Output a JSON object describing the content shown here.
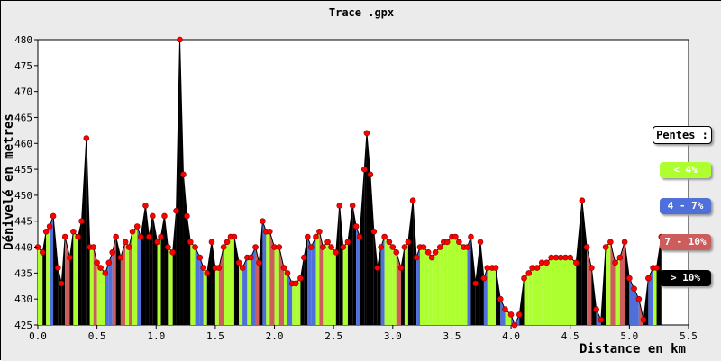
{
  "window": {
    "title": "Trace .gpx"
  },
  "legend": {
    "title": "Pentes :",
    "items": [
      {
        "label": "< 4%",
        "color": "#adff2f"
      },
      {
        "label": "4 - 7%",
        "color": "#4f6fd9"
      },
      {
        "label": "7 - 10%",
        "color": "#cd5c5c"
      },
      {
        "label": "> 10%",
        "color": "#000000"
      }
    ]
  },
  "chart_data": {
    "type": "area",
    "title": "Trace .gpx",
    "xlabel": "Distance en km",
    "ylabel": "Dénivelé en metres",
    "xlim": [
      0,
      5.5
    ],
    "ylim": [
      425,
      480
    ],
    "x_ticks": [
      "0.0",
      "0.5",
      "1.0",
      "1.5",
      "2.0",
      "2.5",
      "3.0",
      "3.5",
      "4.0",
      "4.5",
      "5.0",
      "5.5"
    ],
    "y_ticks": [
      "425",
      "430",
      "435",
      "440",
      "445",
      "450",
      "455",
      "460",
      "465",
      "470",
      "475",
      "480"
    ],
    "grid": false,
    "legend_position": "right",
    "colors": {
      "background": "#ebebeb",
      "plot_background": "#ffffff",
      "marker": "#ff0000",
      "slope_under_4": "#adff2f",
      "slope_4_7": "#4f6fd9",
      "slope_7_10": "#cd5c5c",
      "slope_over_10": "#000000"
    },
    "points": [
      [
        0.0,
        440
      ],
      [
        0.04,
        439
      ],
      [
        0.07,
        443
      ],
      [
        0.1,
        444
      ],
      [
        0.13,
        446
      ],
      [
        0.17,
        436
      ],
      [
        0.2,
        433
      ],
      [
        0.23,
        442
      ],
      [
        0.27,
        438
      ],
      [
        0.3,
        443
      ],
      [
        0.34,
        442
      ],
      [
        0.37,
        445
      ],
      [
        0.41,
        461
      ],
      [
        0.44,
        440
      ],
      [
        0.47,
        440
      ],
      [
        0.5,
        437
      ],
      [
        0.53,
        436
      ],
      [
        0.57,
        435
      ],
      [
        0.6,
        437
      ],
      [
        0.63,
        439
      ],
      [
        0.66,
        442
      ],
      [
        0.7,
        438
      ],
      [
        0.74,
        441
      ],
      [
        0.77,
        440
      ],
      [
        0.8,
        443
      ],
      [
        0.84,
        444
      ],
      [
        0.87,
        442
      ],
      [
        0.91,
        448
      ],
      [
        0.94,
        442
      ],
      [
        0.97,
        446
      ],
      [
        1.01,
        441
      ],
      [
        1.04,
        442
      ],
      [
        1.07,
        446
      ],
      [
        1.1,
        440
      ],
      [
        1.14,
        439
      ],
      [
        1.17,
        447
      ],
      [
        1.2,
        480
      ],
      [
        1.23,
        454
      ],
      [
        1.26,
        446
      ],
      [
        1.29,
        441
      ],
      [
        1.33,
        440
      ],
      [
        1.37,
        438
      ],
      [
        1.4,
        436
      ],
      [
        1.43,
        435
      ],
      [
        1.47,
        441
      ],
      [
        1.5,
        436
      ],
      [
        1.53,
        436
      ],
      [
        1.57,
        440
      ],
      [
        1.6,
        441
      ],
      [
        1.63,
        442
      ],
      [
        1.66,
        442
      ],
      [
        1.7,
        437
      ],
      [
        1.73,
        436
      ],
      [
        1.77,
        438
      ],
      [
        1.8,
        438
      ],
      [
        1.84,
        440
      ],
      [
        1.87,
        437
      ],
      [
        1.9,
        445
      ],
      [
        1.93,
        443
      ],
      [
        1.96,
        443
      ],
      [
        2.0,
        440
      ],
      [
        2.04,
        440
      ],
      [
        2.08,
        436
      ],
      [
        2.11,
        435
      ],
      [
        2.15,
        433
      ],
      [
        2.18,
        433
      ],
      [
        2.22,
        434
      ],
      [
        2.25,
        438
      ],
      [
        2.28,
        442
      ],
      [
        2.31,
        440
      ],
      [
        2.35,
        442
      ],
      [
        2.38,
        443
      ],
      [
        2.41,
        440
      ],
      [
        2.45,
        441
      ],
      [
        2.48,
        440
      ],
      [
        2.52,
        439
      ],
      [
        2.55,
        448
      ],
      [
        2.58,
        440
      ],
      [
        2.62,
        441
      ],
      [
        2.66,
        448
      ],
      [
        2.69,
        444
      ],
      [
        2.72,
        442
      ],
      [
        2.76,
        455
      ],
      [
        2.78,
        462
      ],
      [
        2.81,
        454
      ],
      [
        2.84,
        443
      ],
      [
        2.87,
        436
      ],
      [
        2.9,
        440
      ],
      [
        2.93,
        442
      ],
      [
        2.97,
        441
      ],
      [
        3.0,
        440
      ],
      [
        3.03,
        439
      ],
      [
        3.07,
        436
      ],
      [
        3.1,
        440
      ],
      [
        3.13,
        441
      ],
      [
        3.17,
        449
      ],
      [
        3.2,
        438
      ],
      [
        3.23,
        440
      ],
      [
        3.26,
        440
      ],
      [
        3.3,
        439
      ],
      [
        3.33,
        438
      ],
      [
        3.36,
        439
      ],
      [
        3.4,
        440
      ],
      [
        3.43,
        441
      ],
      [
        3.46,
        441
      ],
      [
        3.5,
        442
      ],
      [
        3.53,
        442
      ],
      [
        3.56,
        441
      ],
      [
        3.6,
        440
      ],
      [
        3.63,
        440
      ],
      [
        3.66,
        442
      ],
      [
        3.7,
        433
      ],
      [
        3.74,
        441
      ],
      [
        3.77,
        434
      ],
      [
        3.8,
        436
      ],
      [
        3.84,
        436
      ],
      [
        3.87,
        436
      ],
      [
        3.91,
        430
      ],
      [
        3.95,
        428
      ],
      [
        4.0,
        427
      ],
      [
        4.03,
        425
      ],
      [
        4.07,
        427
      ],
      [
        4.11,
        434
      ],
      [
        4.15,
        435
      ],
      [
        4.18,
        436
      ],
      [
        4.22,
        436
      ],
      [
        4.26,
        437
      ],
      [
        4.3,
        437
      ],
      [
        4.34,
        438
      ],
      [
        4.38,
        438
      ],
      [
        4.42,
        438
      ],
      [
        4.46,
        438
      ],
      [
        4.5,
        438
      ],
      [
        4.55,
        437
      ],
      [
        4.6,
        449
      ],
      [
        4.64,
        440
      ],
      [
        4.68,
        436
      ],
      [
        4.72,
        428
      ],
      [
        4.76,
        426
      ],
      [
        4.8,
        440
      ],
      [
        4.84,
        441
      ],
      [
        4.88,
        437
      ],
      [
        4.92,
        438
      ],
      [
        4.96,
        441
      ],
      [
        5.0,
        434
      ],
      [
        5.04,
        432
      ],
      [
        5.08,
        430
      ],
      [
        5.12,
        426
      ],
      [
        5.16,
        434
      ],
      [
        5.2,
        436
      ],
      [
        5.23,
        436
      ],
      [
        5.27,
        442
      ]
    ],
    "point_markers": true,
    "fill_by_slope": true
  }
}
